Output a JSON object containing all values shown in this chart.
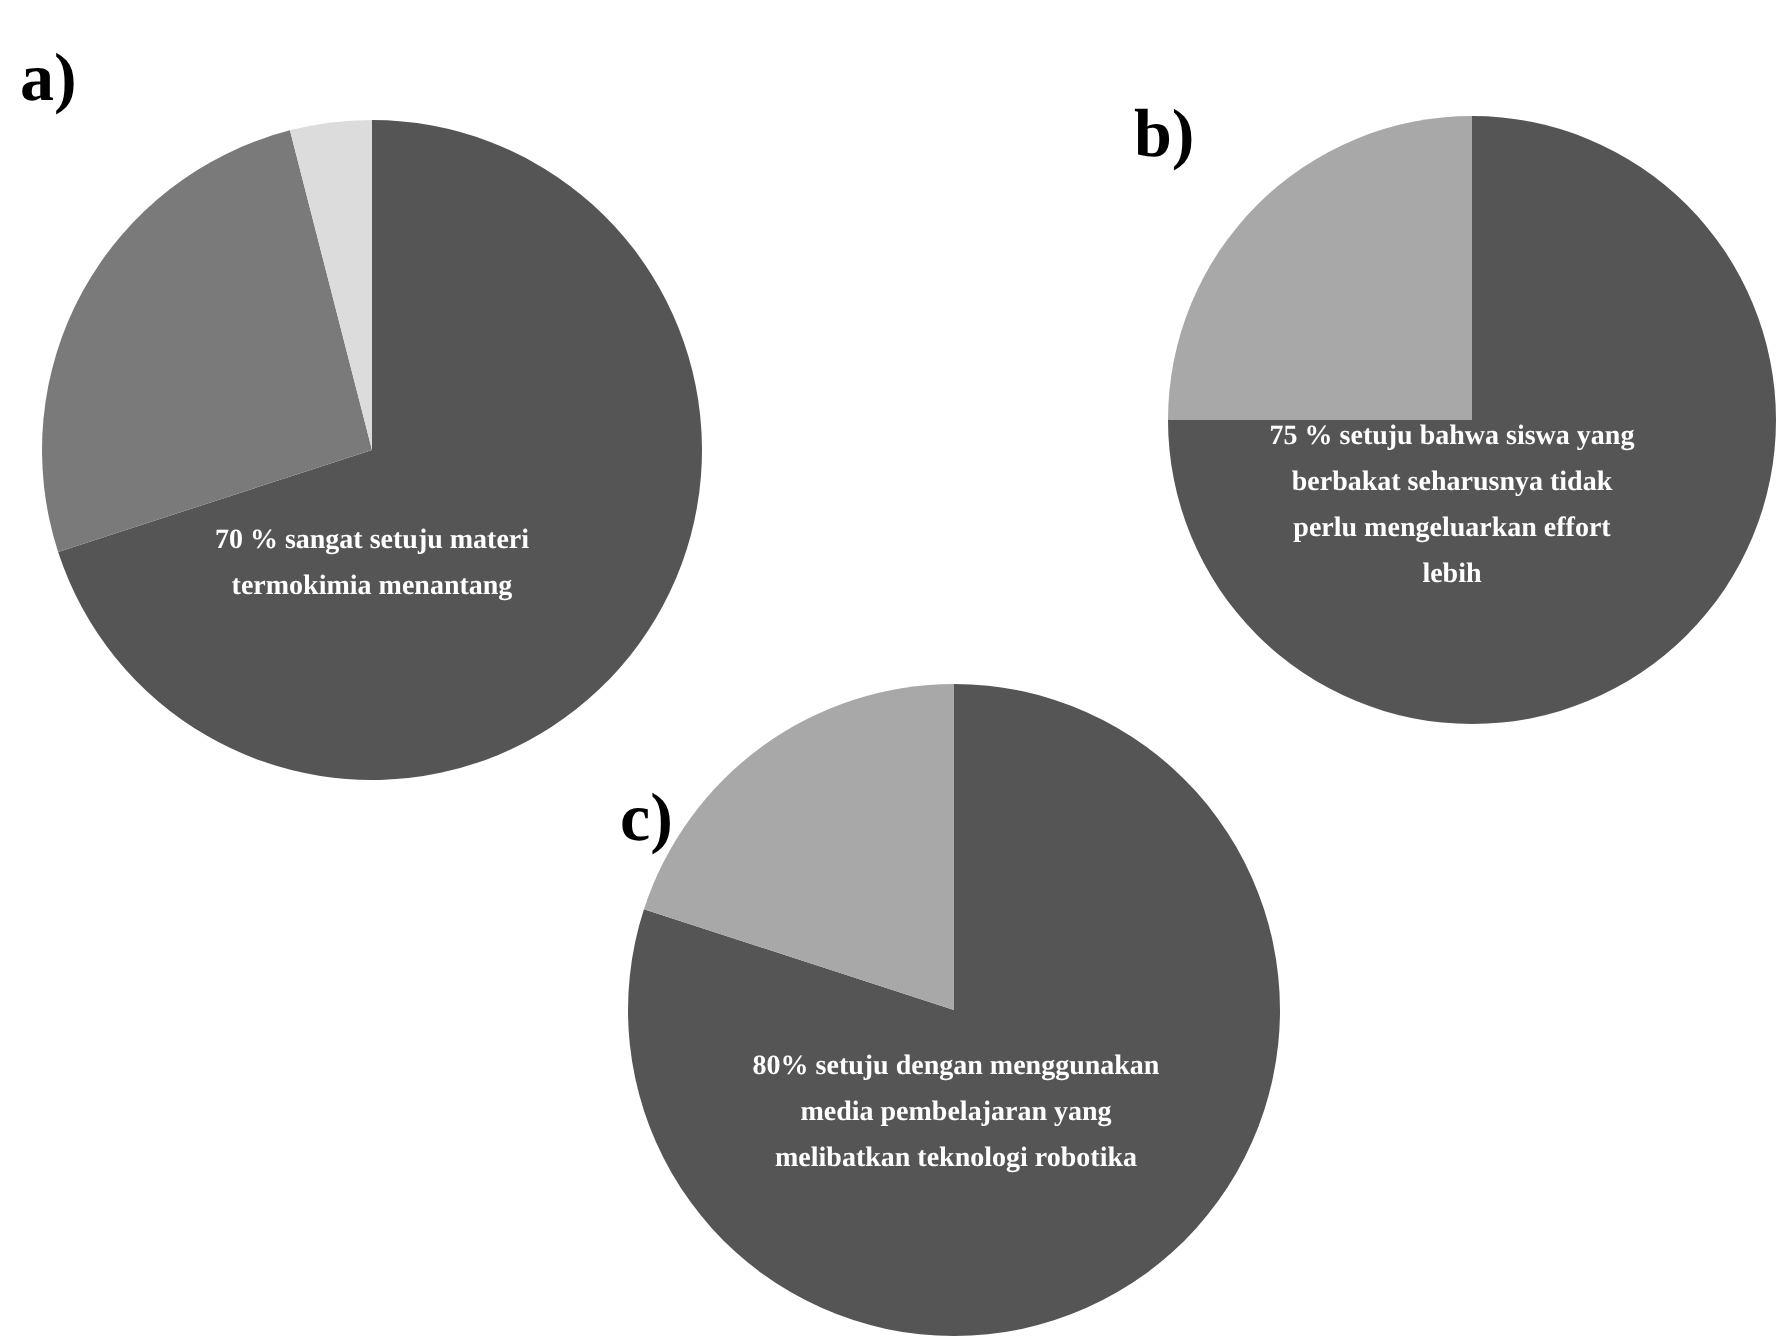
{
  "chart_data": [
    {
      "type": "pie",
      "title": "a)",
      "categories": [
        null,
        null,
        null
      ],
      "values": [
        70,
        26,
        4
      ],
      "colors": [
        "#555555",
        "#7a7a7a",
        "#dcdcdc"
      ],
      "annotations": [
        "70 % sangat setuju materi\ntermokimia menantang"
      ]
    },
    {
      "type": "pie",
      "title": "b)",
      "categories": [
        null,
        null
      ],
      "values": [
        75,
        25
      ],
      "colors": [
        "#555555",
        "#a8a8a8"
      ],
      "annotations": [
        "75 % setuju bahwa siswa yang\nberbakat seharusnya tidak\nperlu mengeluarkan effort\nlebih"
      ]
    },
    {
      "type": "pie",
      "title": "c)",
      "categories": [
        null,
        null
      ],
      "values": [
        80,
        20
      ],
      "colors": [
        "#555555",
        "#a8a8a8"
      ],
      "annotations": [
        "80% setuju dengan menggunakan\nmedia pembelajaran yang\nmelibatkan teknologi robotika"
      ]
    }
  ]
}
